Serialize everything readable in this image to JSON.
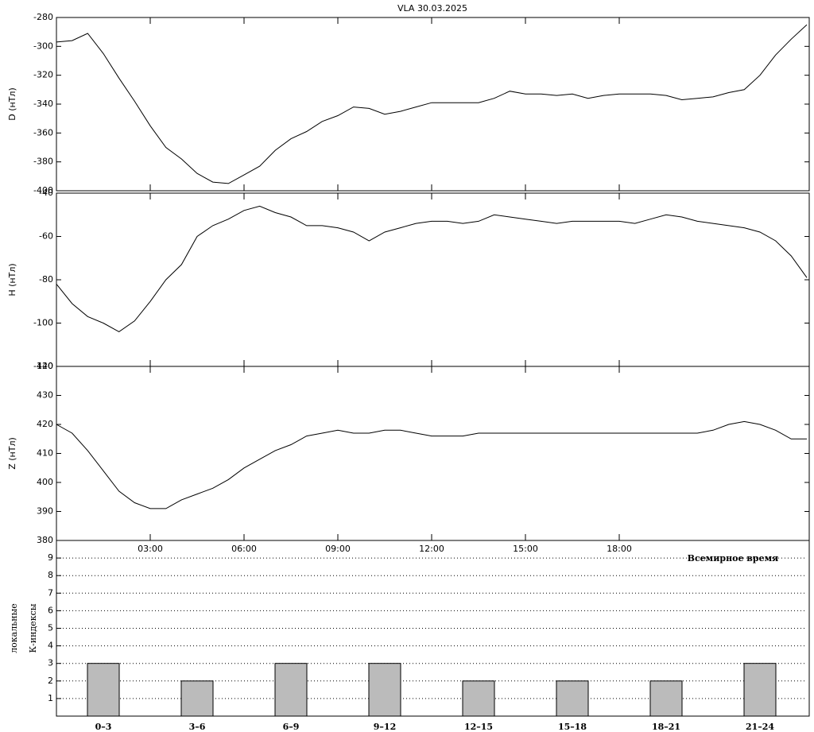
{
  "chart_data": [
    {
      "type": "line",
      "title": "VLA   30.03.2025",
      "ylabel": "D (нТл)",
      "color": "#000000",
      "x": [
        0,
        0.5,
        1,
        1.5,
        2,
        2.5,
        3,
        3.5,
        4,
        4.5,
        5,
        5.5,
        6,
        6.5,
        7,
        7.5,
        8,
        8.5,
        9,
        9.5,
        10,
        10.5,
        11,
        11.5,
        12,
        12.5,
        13,
        13.5,
        14,
        14.5,
        15,
        15.5,
        16,
        16.5,
        17,
        17.5,
        18,
        18.5,
        19,
        19.5,
        20,
        20.5,
        21,
        21.5,
        22,
        22.5,
        23,
        23.5,
        24
      ],
      "values": [
        -297,
        -296,
        -291,
        -305,
        -322,
        -338,
        -355,
        -370,
        -378,
        -388,
        -394,
        -395,
        -389,
        -383,
        -372,
        -364,
        -359,
        -352,
        -348,
        -342,
        -343,
        -347,
        -345,
        -342,
        -339,
        -339,
        -339,
        -339,
        -336,
        -331,
        -333,
        -333,
        -334,
        -333,
        -336,
        -334,
        -333,
        -333,
        -333,
        -334,
        -337,
        -336,
        -335,
        -332,
        -330,
        -320,
        -306,
        -295,
        -285
      ],
      "xlim": [
        0,
        24
      ],
      "ylim": [
        -400,
        -280
      ],
      "yticks": [
        -280,
        -300,
        -320,
        -340,
        -360,
        -380,
        -400
      ]
    },
    {
      "type": "line",
      "ylabel": "H (нТл)",
      "color": "#000000",
      "x": [
        0,
        0.5,
        1,
        1.5,
        2,
        2.5,
        3,
        3.5,
        4,
        4.5,
        5,
        5.5,
        6,
        6.5,
        7,
        7.5,
        8,
        8.5,
        9,
        9.5,
        10,
        10.5,
        11,
        11.5,
        12,
        12.5,
        13,
        13.5,
        14,
        14.5,
        15,
        15.5,
        16,
        16.5,
        17,
        17.5,
        18,
        18.5,
        19,
        19.5,
        20,
        20.5,
        21,
        21.5,
        22,
        22.5,
        23,
        23.5,
        24
      ],
      "values": [
        -82,
        -91,
        -97,
        -100,
        -104,
        -99,
        -90,
        -80,
        -73,
        -60,
        -55,
        -52,
        -48,
        -46,
        -49,
        -51,
        -55,
        -55,
        -56,
        -58,
        -62,
        -58,
        -56,
        -54,
        -53,
        -53,
        -54,
        -53,
        -50,
        -51,
        -52,
        -53,
        -54,
        -53,
        -53,
        -53,
        -53,
        -54,
        -52,
        -50,
        -51,
        -53,
        -54,
        -55,
        -56,
        -58,
        -62,
        -69,
        -79
      ],
      "xlim": [
        0,
        24
      ],
      "ylim": [
        -120,
        -40
      ],
      "yticks": [
        -40,
        -60,
        -80,
        -100,
        -120
      ]
    },
    {
      "type": "line",
      "ylabel": "Z (нТл)",
      "xlabel": "Всемирное время",
      "color": "#000000",
      "x": [
        0,
        0.5,
        1,
        1.5,
        2,
        2.5,
        3,
        3.5,
        4,
        4.5,
        5,
        5.5,
        6,
        6.5,
        7,
        7.5,
        8,
        8.5,
        9,
        9.5,
        10,
        10.5,
        11,
        11.5,
        12,
        12.5,
        13,
        13.5,
        14,
        14.5,
        15,
        15.5,
        16,
        16.5,
        17,
        17.5,
        18,
        18.5,
        19,
        19.5,
        20,
        20.5,
        21,
        21.5,
        22,
        22.5,
        23,
        23.5,
        24
      ],
      "values": [
        420,
        417,
        411,
        404,
        397,
        393,
        391,
        391,
        394,
        396,
        398,
        401,
        405,
        408,
        411,
        413,
        416,
        417,
        418,
        417,
        417,
        418,
        418,
        417,
        416,
        416,
        416,
        417,
        417,
        417,
        417,
        417,
        417,
        417,
        417,
        417,
        417,
        417,
        417,
        417,
        417,
        417,
        418,
        420,
        421,
        420,
        418,
        415,
        415
      ],
      "xlim": [
        0,
        24
      ],
      "xticks": [
        {
          "value": 3,
          "label": "03:00"
        },
        {
          "value": 6,
          "label": "06:00"
        },
        {
          "value": 9,
          "label": "09:00"
        },
        {
          "value": 12,
          "label": "12:00"
        },
        {
          "value": 15,
          "label": "15:00"
        },
        {
          "value": 18,
          "label": "18:00"
        }
      ],
      "ylim": [
        380,
        440
      ],
      "yticks": [
        380,
        390,
        400,
        410,
        420,
        430,
        440
      ]
    },
    {
      "type": "bar",
      "ylabel": [
        "локальные",
        "К-индексы"
      ],
      "color": "#bbbbbb",
      "grid": true,
      "categories": [
        "0–3",
        "3–6",
        "6–9",
        "9–12",
        "12–15",
        "15–18",
        "18–21",
        "21–24"
      ],
      "values": [
        3,
        2,
        3,
        3,
        2,
        2,
        2,
        3
      ],
      "ylim": [
        0,
        10
      ],
      "yticks": [
        1,
        2,
        3,
        4,
        5,
        6,
        7,
        8,
        9
      ]
    }
  ]
}
